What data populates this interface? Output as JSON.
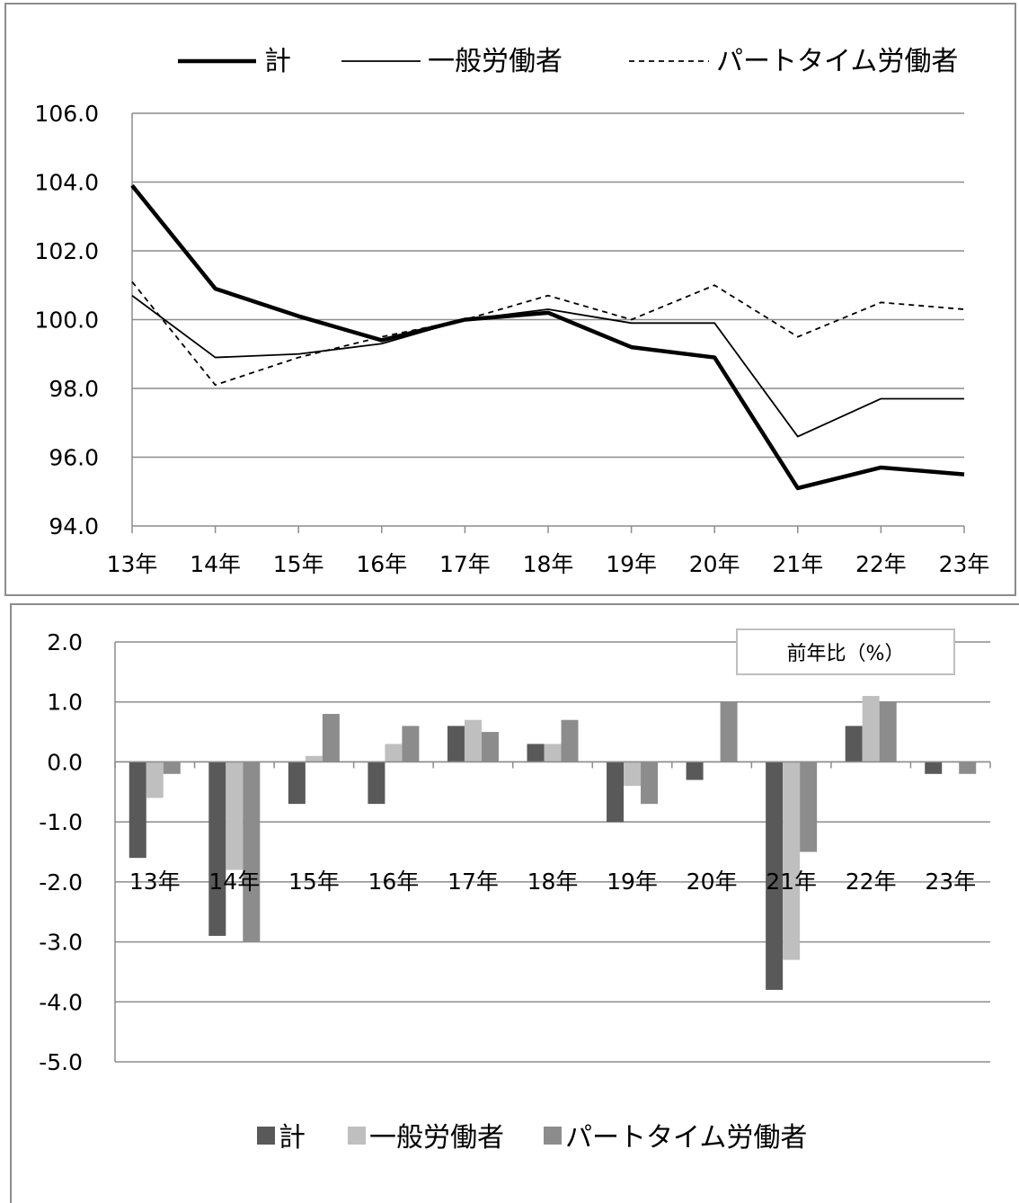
{
  "chart_data": [
    {
      "type": "line",
      "categories": [
        "13年",
        "14年",
        "15年",
        "16年",
        "17年",
        "18年",
        "19年",
        "20年",
        "21年",
        "22年",
        "23年"
      ],
      "ylim": [
        94,
        106
      ],
      "yticks": [
        "94.0",
        "96.0",
        "98.0",
        "100.0",
        "102.0",
        "104.0",
        "106.0"
      ],
      "grid": true,
      "legend_position": "top",
      "series": [
        {
          "name": "計",
          "style": "thick-solid",
          "color": "#000000",
          "values": [
            103.9,
            100.9,
            100.1,
            99.4,
            100.0,
            100.2,
            99.2,
            98.9,
            95.1,
            95.7,
            95.5
          ]
        },
        {
          "name": "一般労働者",
          "style": "thin-solid",
          "color": "#000000",
          "values": [
            100.7,
            98.9,
            99.0,
            99.3,
            100.0,
            100.3,
            99.9,
            99.9,
            96.6,
            97.7,
            97.7
          ]
        },
        {
          "name": "パートタイム労働者",
          "style": "dashed",
          "color": "#000000",
          "values": [
            101.1,
            98.1,
            98.9,
            99.5,
            100.0,
            100.7,
            100.0,
            101.0,
            99.5,
            100.5,
            100.3
          ]
        }
      ]
    },
    {
      "type": "bar",
      "title": "前年比（%）",
      "categories": [
        "13年",
        "14年",
        "15年",
        "16年",
        "17年",
        "18年",
        "19年",
        "20年",
        "21年",
        "22年",
        "23年"
      ],
      "ylim": [
        -5,
        2
      ],
      "yticks": [
        "-5.0",
        "-4.0",
        "-3.0",
        "-2.0",
        "-1.0",
        "0.0",
        "1.0",
        "2.0"
      ],
      "grid": true,
      "legend_position": "bottom",
      "series": [
        {
          "name": "計",
          "color": "#595959",
          "values": [
            -1.6,
            -2.9,
            -0.7,
            -0.7,
            0.6,
            0.3,
            -1.0,
            -0.3,
            -3.8,
            0.6,
            -0.2
          ]
        },
        {
          "name": "一般労働者",
          "color": "#bfbfbf",
          "values": [
            -0.6,
            -1.8,
            0.1,
            0.3,
            0.7,
            0.3,
            -0.4,
            0.0,
            -3.3,
            1.1,
            0.0
          ]
        },
        {
          "name": "パートタイム労働者",
          "color": "#8c8c8c",
          "values": [
            -0.2,
            -3.0,
            0.8,
            0.6,
            0.5,
            0.7,
            -0.7,
            1.0,
            -1.5,
            1.0,
            -0.2
          ]
        }
      ]
    }
  ]
}
